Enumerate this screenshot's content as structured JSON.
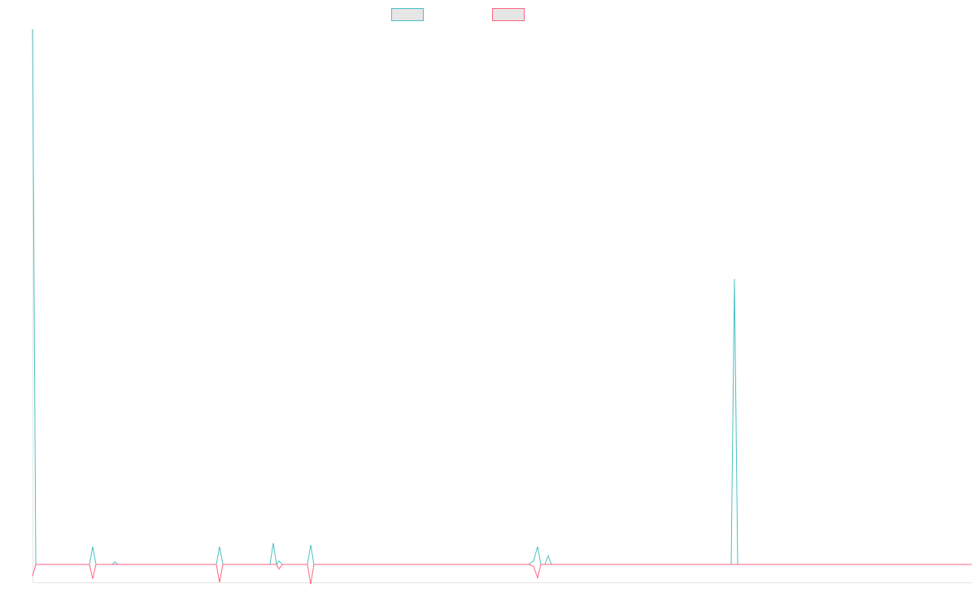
{
  "chart_data": {
    "type": "line",
    "xlim": [
      0,
      1155
    ],
    "ylim": [
      -1,
      30
    ],
    "series": [
      {
        "color": "#4bc0c0",
        "x": [
          0,
          4,
          70,
          74,
          78,
          98,
          101,
          105,
          226,
          230,
          234,
          292,
          296,
          300,
          303,
          307,
          338,
          342,
          346,
          610,
          616,
          621,
          625,
          630,
          634,
          638,
          859,
          863,
          867,
          1155
        ],
        "values": [
          30,
          0,
          0,
          1,
          0,
          0,
          0.15,
          0,
          0,
          1,
          0,
          0,
          1.2,
          0,
          0.2,
          0,
          0,
          1.1,
          0,
          0,
          0.2,
          1,
          0,
          0,
          0.5,
          0,
          0,
          16,
          0,
          0
        ]
      },
      {
        "color": "#ff6384",
        "x": [
          0,
          4,
          70,
          74,
          78,
          226,
          230,
          234,
          300,
          303,
          307,
          338,
          342,
          346,
          610,
          616,
          621,
          625,
          1155
        ],
        "values": [
          -0.65,
          0,
          0,
          -0.8,
          0,
          0,
          -1,
          0,
          0,
          -0.25,
          0,
          0,
          -1.1,
          0,
          0,
          -0.1,
          -0.75,
          0,
          0
        ]
      }
    ]
  }
}
